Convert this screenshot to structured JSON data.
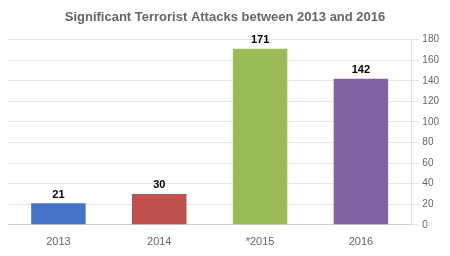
{
  "chart_data": {
    "type": "bar",
    "title": "Significant Terrorist Attacks between 2013 and 2016",
    "categories": [
      "2013",
      "2014",
      "*2015",
      "2016"
    ],
    "values": [
      21,
      30,
      171,
      142
    ],
    "colors": [
      "#4472C4",
      "#C0504D",
      "#9BBB59",
      "#8064A2"
    ],
    "ylim": [
      0,
      180
    ],
    "yticks": [
      0,
      20,
      40,
      60,
      80,
      100,
      120,
      140,
      160,
      180
    ],
    "grid": true,
    "data_labels": true
  }
}
